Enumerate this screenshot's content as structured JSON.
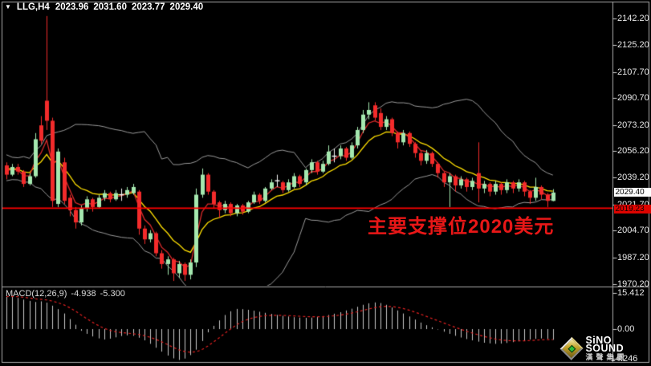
{
  "header": {
    "dropdown_icon": "▼",
    "symbol_label": "LLG,H4",
    "open": "2023.96",
    "high": "2031.60",
    "low": "2023.77",
    "close": "2029.40"
  },
  "macd_label": {
    "name": "MACD(12,26,9)",
    "main_value": "-4.938",
    "signal_value": "-5.300"
  },
  "annotation": {
    "text": "主要支撑位2020美元",
    "color": "#E81717"
  },
  "price_axis": {
    "ticks": [
      "2142.20",
      "2125.20",
      "2107.70",
      "2090.70",
      "2073.20",
      "2056.20",
      "2039.20",
      "2021.70",
      "2004.70",
      "1987.20",
      "1970.20"
    ],
    "current_price_badge": {
      "value": "2029.40",
      "bg": "#FFFFFF",
      "fg": "#000000"
    },
    "support_badge": {
      "value": "2019.23",
      "bg": "#DD0400",
      "fg": "#000000"
    }
  },
  "macd_axis": {
    "max": "15.412",
    "zero": "0.00",
    "min": "-14.246"
  },
  "logo": {
    "line1": "SiNO SOUND",
    "line2": "漢聲集團"
  },
  "chart_data": {
    "type": "candlestick",
    "symbol": "LLG",
    "timeframe": "H4",
    "support_level": 2019.23,
    "current_price": 2029.4,
    "price_ticks": [
      2142.2,
      2125.2,
      2107.7,
      2090.7,
      2073.2,
      2056.2,
      2039.2,
      2021.7,
      2004.7,
      1987.2,
      1970.2
    ],
    "colors": {
      "up": "#A5E8AF",
      "down": "#F32B2B",
      "doji": "#F0F0F0",
      "ma_fast": "#D82A2A",
      "ma_slow": "#FFDF00",
      "band": "#9A9A9A",
      "support": "#FF0000",
      "histogram": "#C9C9C9",
      "signal": "#E02020",
      "frame": "#ABABAB"
    },
    "indicators": {
      "ma_fast": {
        "type": "EMA",
        "period": 4
      },
      "ma_slow": {
        "type": "EMA",
        "period": 10
      },
      "bollinger": {
        "period": 20,
        "deviation": 2
      }
    },
    "history_closes": [
      2060,
      2055,
      2062,
      2050,
      2045,
      2055,
      2048,
      2042,
      2052,
      2046,
      2040,
      2050,
      2044,
      2038,
      2048,
      2042,
      2046,
      2050,
      2043,
      2047,
      2041,
      2045,
      2048,
      2044
    ],
    "candles": [
      [
        2047,
        2049,
        2038,
        2041
      ],
      [
        2041,
        2048,
        2040,
        2046
      ],
      [
        2046,
        2048,
        2041,
        2043
      ],
      [
        2043,
        2044,
        2033,
        2035
      ],
      [
        2035,
        2042,
        2034,
        2040
      ],
      [
        2040,
        2068,
        2039,
        2064
      ],
      [
        2073,
        2079,
        2061,
        2063
      ],
      [
        2089,
        2144,
        2070,
        2076
      ],
      [
        2076,
        2078,
        2020,
        2024
      ],
      [
        2022,
        2058,
        2020,
        2056
      ],
      [
        2049,
        2052,
        2022,
        2024
      ],
      [
        2026,
        2028,
        2014,
        2018
      ],
      [
        2018,
        2020,
        2006,
        2010
      ],
      [
        2010,
        2021,
        2008,
        2019
      ],
      [
        2019,
        2027,
        2017,
        2025
      ],
      [
        2025,
        2026,
        2017,
        2020
      ],
      [
        2020,
        2028,
        2019,
        2026
      ],
      [
        2026,
        2031,
        2024,
        2029
      ],
      [
        2029,
        2030,
        2023,
        2025
      ],
      [
        2025,
        2031,
        2024,
        2029
      ],
      [
        2028,
        2032,
        2024,
        2028
      ],
      [
        2028,
        2033,
        2026,
        2031
      ],
      [
        2029,
        2035,
        2028,
        2033
      ],
      [
        2030,
        2031,
        2002,
        2006
      ],
      [
        2006,
        2008,
        1996,
        1999
      ],
      [
        1999,
        2005,
        1997,
        2003
      ],
      [
        2003,
        2004,
        1988,
        1990
      ],
      [
        1990,
        1992,
        1980,
        1983
      ],
      [
        1983,
        1988,
        1976,
        1986
      ],
      [
        1986,
        1987,
        1972,
        1977
      ],
      [
        1977,
        1985,
        1974,
        1983
      ],
      [
        1983,
        1984,
        1972,
        1976
      ],
      [
        1976,
        1986,
        1973,
        1984
      ],
      [
        1984,
        2032,
        1981,
        2028
      ],
      [
        2028,
        2045,
        2026,
        2041
      ],
      [
        2041,
        2042,
        2028,
        2030
      ],
      [
        2030,
        2031,
        2019,
        2022
      ],
      [
        2023,
        2024,
        2013,
        2018
      ],
      [
        2018,
        2024,
        2016,
        2022
      ],
      [
        2022,
        2023,
        2014,
        2016
      ],
      [
        2016,
        2022,
        2014,
        2021
      ],
      [
        2021,
        2022,
        2015,
        2017
      ],
      [
        2017,
        2024,
        2016,
        2023
      ],
      [
        2023,
        2030,
        2022,
        2028
      ],
      [
        2028,
        2029,
        2022,
        2024
      ],
      [
        2024,
        2033,
        2023,
        2032
      ],
      [
        2032,
        2038,
        2031,
        2036
      ],
      [
        2037,
        2041,
        2033,
        2037
      ],
      [
        2036,
        2037,
        2029,
        2031
      ],
      [
        2031,
        2038,
        2030,
        2036
      ],
      [
        2033,
        2042,
        2032,
        2040
      ],
      [
        2040,
        2041,
        2033,
        2035
      ],
      [
        2036,
        2045,
        2034,
        2044
      ],
      [
        2044,
        2051,
        2042,
        2049
      ],
      [
        2049,
        2050,
        2041,
        2043
      ],
      [
        2043,
        2050,
        2042,
        2048
      ],
      [
        2048,
        2060,
        2047,
        2056
      ],
      [
        2053,
        2058,
        2049,
        2053
      ],
      [
        2053,
        2060,
        2051,
        2058
      ],
      [
        2058,
        2059,
        2050,
        2052
      ],
      [
        2052,
        2062,
        2051,
        2060
      ],
      [
        2060,
        2072,
        2058,
        2070
      ],
      [
        2070,
        2083,
        2068,
        2080
      ],
      [
        2080,
        2088,
        2077,
        2083
      ],
      [
        2086,
        2088,
        2076,
        2078
      ],
      [
        2081,
        2084,
        2070,
        2072
      ],
      [
        2072,
        2079,
        2070,
        2077
      ],
      [
        2077,
        2078,
        2066,
        2068
      ],
      [
        2068,
        2069,
        2058,
        2062
      ],
      [
        2062,
        2070,
        2060,
        2068
      ],
      [
        2068,
        2069,
        2059,
        2061
      ],
      [
        2061,
        2062,
        2052,
        2055
      ],
      [
        2055,
        2057,
        2047,
        2050
      ],
      [
        2050,
        2057,
        2048,
        2055
      ],
      [
        2055,
        2056,
        2046,
        2048
      ],
      [
        2048,
        2049,
        2039,
        2042
      ],
      [
        2042,
        2043,
        2033,
        2036
      ],
      [
        2036,
        2042,
        2020,
        2040
      ],
      [
        2040,
        2041,
        2030,
        2034
      ],
      [
        2034,
        2040,
        2032,
        2038
      ],
      [
        2038,
        2039,
        2030,
        2033
      ],
      [
        2033,
        2039,
        2031,
        2037
      ],
      [
        2042,
        2062,
        2023,
        2032
      ],
      [
        2032,
        2037,
        2029,
        2035
      ],
      [
        2035,
        2036,
        2027,
        2030
      ],
      [
        2030,
        2037,
        2028,
        2035
      ],
      [
        2035,
        2036,
        2028,
        2031
      ],
      [
        2031,
        2038,
        2029,
        2036
      ],
      [
        2036,
        2037,
        2029,
        2032
      ],
      [
        2032,
        2038,
        2030,
        2036
      ],
      [
        2036,
        2037,
        2027,
        2030
      ],
      [
        2030,
        2031,
        2022,
        2026
      ],
      [
        2026,
        2039,
        2024,
        2033
      ],
      [
        2033,
        2034,
        2025,
        2028
      ],
      [
        2028,
        2029,
        2020,
        2024
      ],
      [
        2023.96,
        2031.6,
        2023.77,
        2029.4
      ]
    ],
    "doji_indices": [
      20,
      47,
      57
    ],
    "macd": {
      "params": [
        12,
        26,
        9
      ],
      "main_last": -4.938,
      "signal_last": -5.3,
      "range": {
        "max": 15.412,
        "min": -14.246
      },
      "histogram": [
        15.0,
        15.412,
        14.4,
        13.6,
        13.0,
        12.5,
        12.8,
        12.2,
        10.8,
        9.2,
        7.2,
        4.6,
        2.0,
        -0.8,
        -2.2,
        -3.4,
        -4.3,
        -4.8,
        -4.4,
        -3.8,
        -3.2,
        -2.9,
        -3.1,
        -4.0,
        -5.2,
        -6.8,
        -8.6,
        -10.4,
        -12.2,
        -13.5,
        -14.246,
        -13.6,
        -12.0,
        -9.5,
        -5.5,
        -1.5,
        1.5,
        4.0,
        6.5,
        8.2,
        9.3,
        9.2,
        8.9,
        8.5,
        8.0,
        7.5,
        7.0,
        6.5,
        6.1,
        5.8,
        5.5,
        5.3,
        5.2,
        5.3,
        5.6,
        6.0,
        6.5,
        7.1,
        7.8,
        8.6,
        9.4,
        10.3,
        11.2,
        11.9,
        12.3,
        12.0,
        11.2,
        10.0,
        8.6,
        7.2,
        5.8,
        4.4,
        3.0,
        1.8,
        0.8,
        -0.2,
        -1.2,
        -2.2,
        -3.1,
        -3.9,
        -4.6,
        -5.2,
        -5.8,
        -6.3,
        -6.6,
        -6.8,
        -6.7,
        -6.4,
        -6.0,
        -5.6,
        -5.2,
        -4.8,
        -4.5,
        -4.3,
        -4.5,
        -4.938
      ]
    }
  }
}
